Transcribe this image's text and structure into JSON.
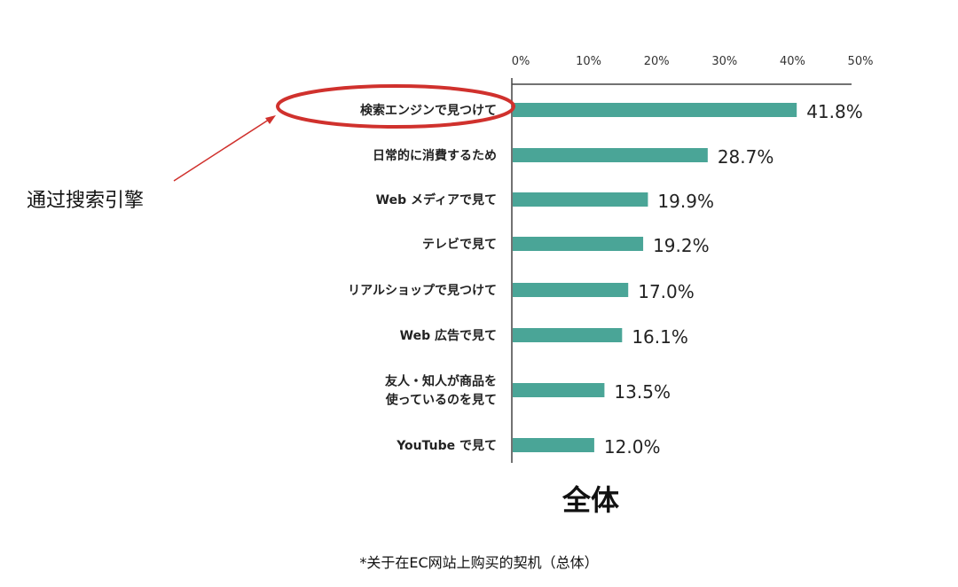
{
  "chart_data": {
    "type": "bar",
    "orientation": "horizontal",
    "categories": [
      [
        "検索エンジンで見つけて"
      ],
      [
        "日常的に消費するため"
      ],
      [
        "Web メディアで見て"
      ],
      [
        "テレビで見て"
      ],
      [
        "リアルショップで見つけて"
      ],
      [
        "Web 広告で見て"
      ],
      [
        "友人・知人が商品を",
        "使っているのを見て"
      ],
      [
        "YouTube で見て"
      ]
    ],
    "values": [
      41.8,
      28.7,
      19.9,
      19.2,
      17.0,
      16.1,
      13.5,
      12.0
    ],
    "value_labels": [
      "41.8%",
      "28.7%",
      "19.9%",
      "19.2%",
      "17.0%",
      "16.1%",
      "13.5%",
      "12.0%"
    ],
    "xlim": [
      0,
      50
    ],
    "x_ticks": [
      "0%",
      "10%",
      "20%",
      "30%",
      "40%",
      "50%"
    ],
    "x_axis_position": "top",
    "subtitle": "全体",
    "footnote": "*关于在EC网站上购买的契机（总体）",
    "bar_color": "#4aa597",
    "grid": false,
    "annotation": {
      "text": "通过搜索引擎",
      "highlight_color": "#d0312d",
      "highlights_category": "検索エンジンで見つけて"
    }
  }
}
